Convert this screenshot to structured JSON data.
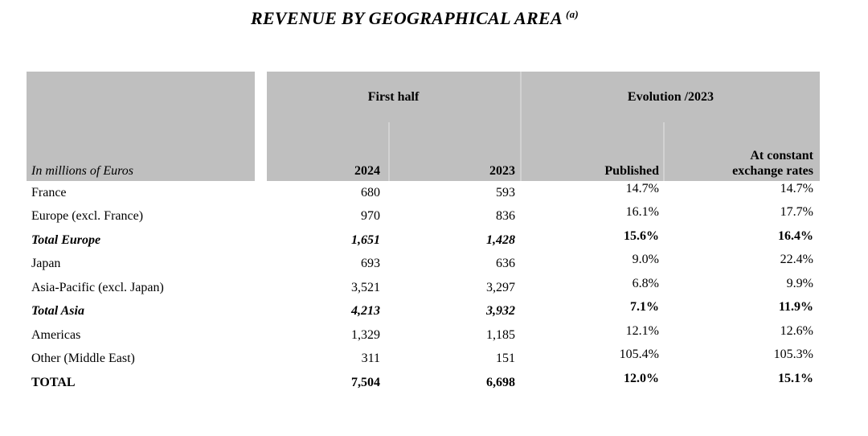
{
  "page": {
    "title": "REVENUE BY GEOGRAPHICAL AREA",
    "title_footnote": "(a)"
  },
  "table": {
    "unit_label": "In millions of Euros",
    "groups": {
      "first_half": "First half",
      "evolution": "Evolution /2023"
    },
    "columns": {
      "col_2024": "2024",
      "col_2023": "2023",
      "published": "Published",
      "constant_fx": "At constant\nexchange rates"
    },
    "rows": [
      {
        "label": "France",
        "values": [
          "680",
          "593",
          "14.7%",
          "14.7%"
        ]
      },
      {
        "label": "Europe (excl. France)",
        "values": [
          "970",
          "836",
          "16.1%",
          "17.7%"
        ]
      },
      {
        "label": "Total Europe",
        "values": [
          "1,651",
          "1,428",
          "15.6%",
          "16.4%"
        ]
      },
      {
        "label": "Japan",
        "values": [
          "693",
          "636",
          "9.0%",
          "22.4%"
        ]
      },
      {
        "label": "Asia-Pacific (excl. Japan)",
        "values": [
          "3,521",
          "3,297",
          "6.8%",
          "9.9%"
        ]
      },
      {
        "label": "Total Asia",
        "values": [
          "4,213",
          "3,932",
          "7.1%",
          "11.9%"
        ]
      },
      {
        "label": "Americas",
        "values": [
          "1,329",
          "1,185",
          "12.1%",
          "12.6%"
        ]
      },
      {
        "label": "Other (Middle East)",
        "values": [
          "311",
          "151",
          "105.4%",
          "105.3%"
        ]
      },
      {
        "label": "TOTAL",
        "values": [
          "7,504",
          "6,698",
          "12.0%",
          "15.1%"
        ]
      }
    ]
  },
  "colors": {
    "header_bg": "#bfbfbf",
    "separator": "#d2d2d2",
    "text": "#000000"
  }
}
